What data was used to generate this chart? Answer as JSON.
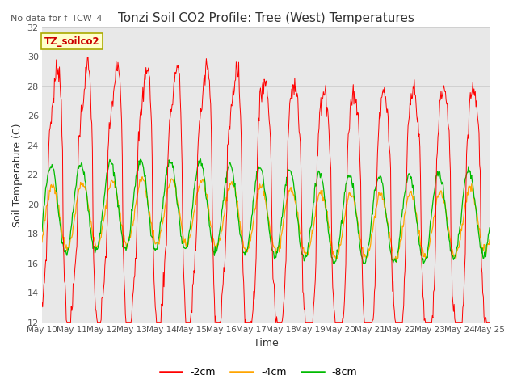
{
  "title": "Tonzi Soil CO2 Profile: Tree (West) Temperatures",
  "subtitle": "No data for f_TCW_4",
  "ylabel": "Soil Temperature (C)",
  "xlabel": "Time",
  "ylim": [
    12,
    32
  ],
  "yticks": [
    12,
    14,
    16,
    18,
    20,
    22,
    24,
    26,
    28,
    30,
    32
  ],
  "xtick_labels": [
    "May 10",
    "May 11",
    "May 12",
    "May 13",
    "May 14",
    "May 15",
    "May 16",
    "May 17",
    "May 18",
    "May 19",
    "May 20",
    "May 21",
    "May 22",
    "May 23",
    "May 24",
    "May 25"
  ],
  "colors": {
    "2cm": "#ff0000",
    "4cm": "#ffa500",
    "8cm": "#00bb00"
  },
  "legend_label_box": "TZ_soilco2",
  "bg_color": "#e8e8e8"
}
